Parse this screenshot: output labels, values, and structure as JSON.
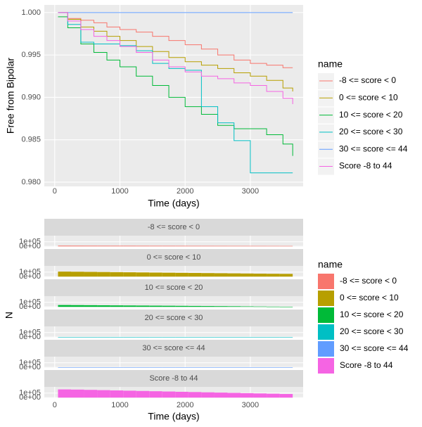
{
  "chart_data": [
    {
      "type": "line",
      "step": true,
      "grid": true,
      "x_label": "Time (days)",
      "y_label": "Free from Bipolar",
      "legend_title": "name",
      "xlim": [
        -160,
        3810
      ],
      "ylim": [
        0.9795,
        1.0009
      ],
      "xticks": [
        0,
        1000,
        2000,
        3000
      ],
      "yticks": [
        {
          "value": 0.98,
          "label": "0.980"
        },
        {
          "value": 0.985,
          "label": "0.985"
        },
        {
          "value": 0.99,
          "label": "0.990"
        },
        {
          "value": 0.995,
          "label": "0.995"
        },
        {
          "value": 1.0,
          "label": "1.000"
        }
      ],
      "x": [
        50,
        200,
        400,
        600,
        800,
        1000,
        1250,
        1500,
        1750,
        2000,
        2250,
        2500,
        2750,
        3000,
        3250,
        3500,
        3650
      ],
      "series": [
        {
          "name": "-8 <= score <  0",
          "color": "#F8766D",
          "values": [
            1.0,
            0.9993,
            0.9991,
            0.9988,
            0.9983,
            0.998,
            0.9977,
            0.9972,
            0.9967,
            0.9962,
            0.9957,
            0.995,
            0.9944,
            0.994,
            0.9938,
            0.9935,
            0.9935
          ]
        },
        {
          "name": "0 <= score < 10",
          "color": "#B79F00",
          "values": [
            1.0,
            0.9992,
            0.9983,
            0.9978,
            0.9972,
            0.9967,
            0.996,
            0.9954,
            0.9947,
            0.9942,
            0.9938,
            0.9934,
            0.9929,
            0.9925,
            0.992,
            0.9911,
            0.9907
          ]
        },
        {
          "name": "10 <= score < 20",
          "color": "#00BA38",
          "values": [
            0.9995,
            0.9982,
            0.9963,
            0.9953,
            0.9944,
            0.9936,
            0.9925,
            0.9914,
            0.99,
            0.9889,
            0.988,
            0.9867,
            0.9863,
            0.9863,
            0.9856,
            0.9845,
            0.9831
          ]
        },
        {
          "name": "20 <= score < 30",
          "color": "#00BFC4",
          "values": [
            1.0,
            0.9986,
            0.9965,
            0.9963,
            0.9963,
            0.9961,
            0.9955,
            0.994,
            0.9934,
            0.9932,
            0.9889,
            0.987,
            0.9849,
            0.9811,
            0.9811,
            0.9811,
            0.9811
          ]
        },
        {
          "name": "30 <= score <=  44",
          "color": "#619CFF",
          "values": [
            1.0,
            1.0,
            1.0,
            1.0,
            1.0,
            1.0,
            1.0,
            1.0,
            1.0,
            1.0,
            1.0,
            1.0,
            1.0,
            1.0,
            1.0,
            1.0,
            1.0
          ]
        },
        {
          "name": "Score -8 to 44",
          "color": "#F564E3",
          "values": [
            1.0,
            0.999,
            0.998,
            0.9972,
            0.9967,
            0.996,
            0.9953,
            0.9944,
            0.9936,
            0.993,
            0.9925,
            0.9922,
            0.9917,
            0.9914,
            0.9907,
            0.9899,
            0.9892
          ]
        }
      ]
    },
    {
      "type": "histogram",
      "grid": true,
      "x_label": "Time (days)",
      "y_label": "N",
      "legend_title": "name",
      "xlim": [
        -160,
        3810
      ],
      "ylim": [
        -12000,
        235000
      ],
      "xticks": [
        0,
        1000,
        2000,
        3000
      ],
      "yticks": [
        {
          "value": 0,
          "label": "0e+00"
        },
        {
          "value": 100000,
          "label": "1e+05"
        }
      ],
      "bins": [
        50,
        250,
        450,
        650,
        850,
        1050,
        1250,
        1450,
        1650,
        1850,
        2050,
        2250,
        2450,
        2650,
        2850,
        3050,
        3250,
        3450,
        3650
      ],
      "series": [
        {
          "name": "-8 <= score <  0",
          "color": "#F8766D",
          "values": [
            16000,
            15500,
            15000,
            14600,
            14200,
            13800,
            13400,
            13000,
            12600,
            12200,
            11800,
            11400,
            11000,
            10600,
            10200,
            9800,
            9400,
            9000
          ]
        },
        {
          "name": "0 <= score < 10",
          "color": "#B79F00",
          "values": [
            110000,
            107000,
            104000,
            101000,
            98000,
            95000,
            92000,
            89000,
            86000,
            83000,
            80000,
            77000,
            74000,
            71000,
            68000,
            65000,
            62000,
            60000
          ]
        },
        {
          "name": "10 <= score < 20",
          "color": "#00BA38",
          "values": [
            40000,
            38000,
            36000,
            34000,
            32000,
            30000,
            28000,
            26000,
            24000,
            22000,
            20000,
            18000,
            16000,
            14000,
            11000,
            8000,
            5000,
            2000
          ]
        },
        {
          "name": "20 <= score < 30",
          "color": "#00BFC4",
          "values": [
            1000,
            1000,
            1000,
            1000,
            1000,
            1000,
            1000,
            1000,
            1000,
            1000,
            1000,
            1000,
            1000,
            1000,
            1000,
            1000,
            1000,
            1000
          ]
        },
        {
          "name": "30 <= score <=  44",
          "color": "#619CFF",
          "values": [
            500,
            500,
            500,
            500,
            500,
            500,
            500,
            500,
            500,
            500,
            500,
            500,
            500,
            500,
            500,
            500,
            500,
            500
          ]
        },
        {
          "name": "Score -8 to 44",
          "color": "#F564E3",
          "values": [
            180000,
            176000,
            170000,
            164000,
            158000,
            152000,
            146000,
            140000,
            134000,
            128000,
            122000,
            116000,
            110000,
            104000,
            98000,
            92000,
            86000,
            80000
          ]
        }
      ]
    }
  ]
}
